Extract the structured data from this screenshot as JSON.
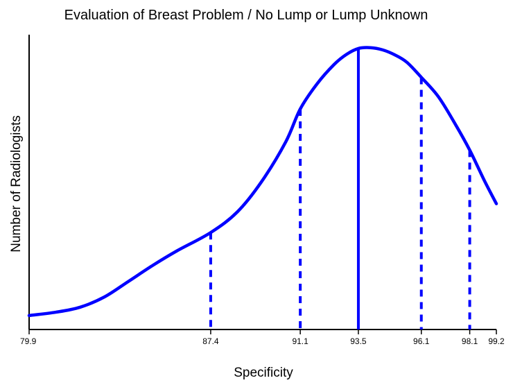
{
  "chart_data": {
    "type": "line",
    "title": "Evaluation of Breast Problem / No Lump or Lump Unknown",
    "xlabel": "Specificity",
    "ylabel": "Number of Radiologists",
    "xlim": [
      79.9,
      99.2
    ],
    "ylim": [
      0,
      100
    ],
    "grid": false,
    "line_color": "#0000ff",
    "curve": {
      "x": [
        79.9,
        81.0,
        82.0,
        83.0,
        84.0,
        85.0,
        86.0,
        87.4,
        88.5,
        89.5,
        90.5,
        91.1,
        91.8,
        92.5,
        93.0,
        93.5,
        94.0,
        94.5,
        95.0,
        95.5,
        96.1,
        96.8,
        97.5,
        98.1,
        98.7,
        99.2
      ],
      "y": [
        0.3,
        1.5,
        3.3,
        7.0,
        12.7,
        18.5,
        23.8,
        30.5,
        38.0,
        49.0,
        63.5,
        75.5,
        84.7,
        91.7,
        95.3,
        97.5,
        97.8,
        97.0,
        95.2,
        92.5,
        87.0,
        80.0,
        70.0,
        60.5,
        49.5,
        41.0
      ]
    },
    "reference_lines": [
      {
        "x": 87.4,
        "y": 30.5,
        "style": "dashed",
        "label": "87.4"
      },
      {
        "x": 91.1,
        "y": 75.5,
        "style": "dashed",
        "label": "91.1"
      },
      {
        "x": 93.5,
        "y": 97.5,
        "style": "solid",
        "label": "93.5"
      },
      {
        "x": 96.1,
        "y": 87.0,
        "style": "dashed",
        "label": "96.1"
      },
      {
        "x": 98.1,
        "y": 60.5,
        "style": "dashed",
        "label": "98.1"
      }
    ],
    "x_tick_labels": [
      "79.9",
      "87.4",
      "91.1",
      "93.5",
      "96.1",
      "98.1",
      "99.2"
    ]
  }
}
